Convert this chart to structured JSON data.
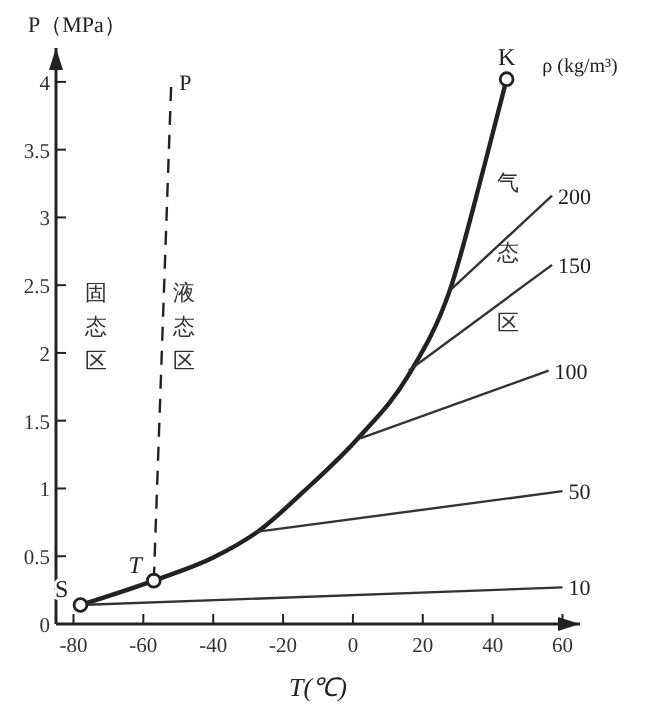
{
  "chart_data": {
    "type": "line",
    "xlabel": "T(℃)",
    "ylabel": "P（MPa）",
    "xlim": [
      -85,
      65
    ],
    "ylim": [
      0,
      4.25
    ],
    "xticks": [
      -80,
      -60,
      -40,
      -20,
      0,
      20,
      40,
      60
    ],
    "yticks": [
      {
        "value": 0,
        "label": "0"
      },
      0.5,
      1.0,
      1.5,
      2.0,
      2.5,
      3.0,
      3.5,
      4.0
    ],
    "grid": false,
    "series": [
      {
        "color": "#222222",
        "x": [
          -78,
          -57,
          -40,
          -26.8,
          -14,
          1.8,
          16,
          27.7,
          37.5,
          44
        ],
        "values": [
          0.14,
          0.32,
          0.49,
          0.69,
          0.98,
          1.38,
          1.84,
          2.46,
          3.37,
          4.02
        ]
      },
      {
        "name": "P",
        "color": "#222222",
        "line_style": "dashed",
        "x": [
          -57,
          -52
        ],
        "values": [
          0.32,
          4.0
        ]
      },
      {
        "name": "10",
        "color": "#333333",
        "x": [
          -78,
          60
        ],
        "values": [
          0.14,
          0.27
        ]
      },
      {
        "name": "50",
        "color": "#333333",
        "x": [
          -27.7,
          60
        ],
        "values": [
          0.68,
          0.98
        ]
      },
      {
        "name": "100",
        "color": "#333333",
        "x": [
          2.1,
          56
        ],
        "values": [
          1.37,
          1.87
        ]
      },
      {
        "name": "150",
        "color": "#333333",
        "x": [
          16,
          57
        ],
        "values": [
          1.87,
          2.65
        ]
      },
      {
        "name": "200",
        "color": "#333333",
        "x": [
          27.7,
          57
        ],
        "values": [
          2.46,
          3.16
        ]
      },
      {
        "type": "scatter",
        "marker": "circle",
        "color": "#222222",
        "x": [
          -78,
          -57,
          44
        ],
        "values": [
          0.14,
          0.32,
          4.02
        ]
      }
    ],
    "annotations": [
      {
        "text": "S",
        "x": -78,
        "y": 0.14
      },
      {
        "text": "T",
        "x": -57,
        "y": 0.32
      },
      {
        "text": "K",
        "x": 44,
        "y": 4.02
      },
      "固态区",
      "液态区",
      "气态区",
      "ρ (kg/m³)"
    ]
  }
}
